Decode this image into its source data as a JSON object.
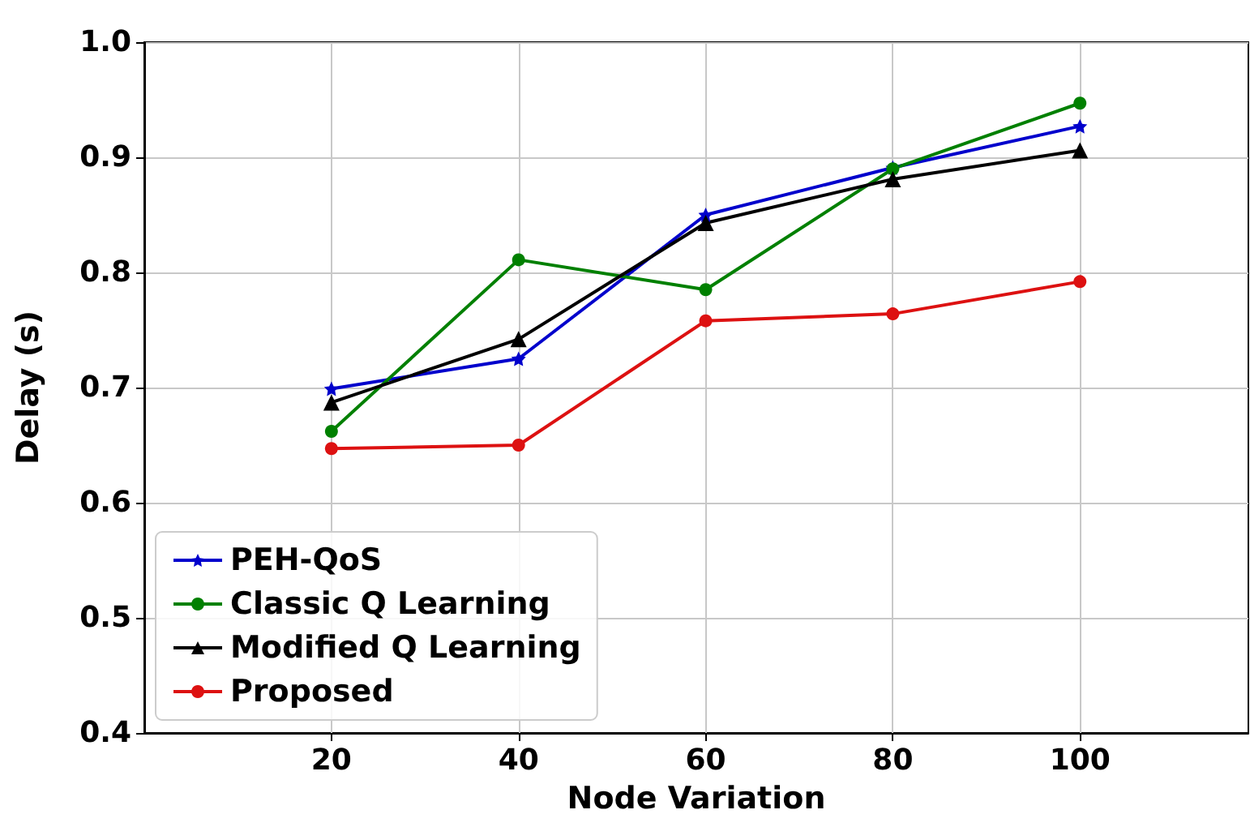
{
  "chart_data": {
    "type": "line",
    "xlabel": "Node Variation",
    "ylabel": "Delay (s)",
    "x": [
      20,
      40,
      60,
      80,
      100
    ],
    "series": [
      {
        "name": "PEH-QoS",
        "color": "#0000cc",
        "marker": "star",
        "values": [
          0.699,
          0.725,
          0.85,
          0.891,
          0.927
        ]
      },
      {
        "name": "Classic Q Learning",
        "color": "#008000",
        "marker": "circle",
        "values": [
          0.662,
          0.811,
          0.785,
          0.89,
          0.947
        ]
      },
      {
        "name": "Modified Q Learning",
        "color": "#000000",
        "marker": "triangle",
        "values": [
          0.687,
          0.742,
          0.843,
          0.881,
          0.906
        ]
      },
      {
        "name": "Proposed",
        "color": "#dd1111",
        "marker": "circle",
        "values": [
          0.647,
          0.65,
          0.758,
          0.764,
          0.792
        ]
      }
    ],
    "xlim": [
      0,
      118
    ],
    "xticks": [
      20,
      40,
      60,
      80,
      100
    ],
    "ylim": [
      0.4,
      1.0
    ],
    "yticks": [
      0.4,
      0.5,
      0.6,
      0.7,
      0.8,
      0.9,
      {
        "value": 1,
        "label": "1.0"
      }
    ],
    "grid": true,
    "legend": "bottom left",
    "line_style": "solid"
  }
}
